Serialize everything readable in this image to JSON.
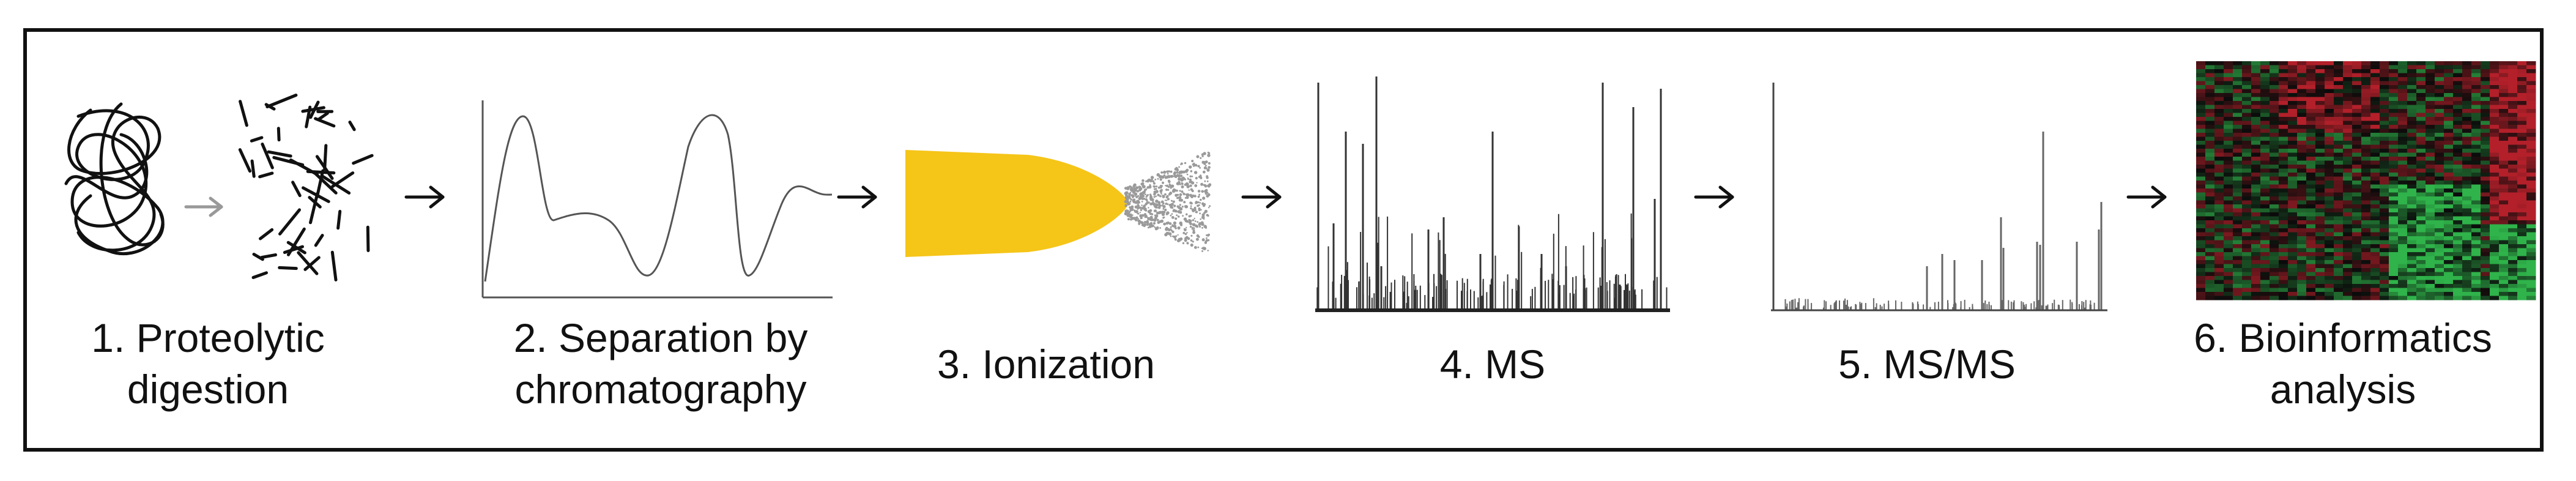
{
  "steps": [
    {
      "id": "digestion",
      "line1": "1. Proteolytic",
      "line2": "digestion"
    },
    {
      "id": "chromatography",
      "line1": "2. Separation by",
      "line2": "chromatography"
    },
    {
      "id": "ionization",
      "line1": "3. Ionization",
      "line2": ""
    },
    {
      "id": "ms",
      "line1": "4. MS",
      "line2": ""
    },
    {
      "id": "msms",
      "line1": "5. MS/MS",
      "line2": ""
    },
    {
      "id": "bioinformatics",
      "line1": "6. Bioinformatics",
      "line2": "analysis"
    }
  ],
  "icons": {
    "protein": "tangled-protein-icon",
    "peptides": "peptide-fragments-icon",
    "chromatogram": "chromatogram-icon",
    "spray": "electrospray-icon",
    "ms_spectrum": "ms-spectrum-icon",
    "msms_spectrum": "msms-spectrum-icon",
    "heatmap": "heatmap-icon",
    "arrow": "right-arrow-icon"
  },
  "colors": {
    "spray": "#f5c518",
    "heat_red": "#b3202a",
    "heat_green": "#2fb34a",
    "heat_dark": "#0b0b0b"
  }
}
